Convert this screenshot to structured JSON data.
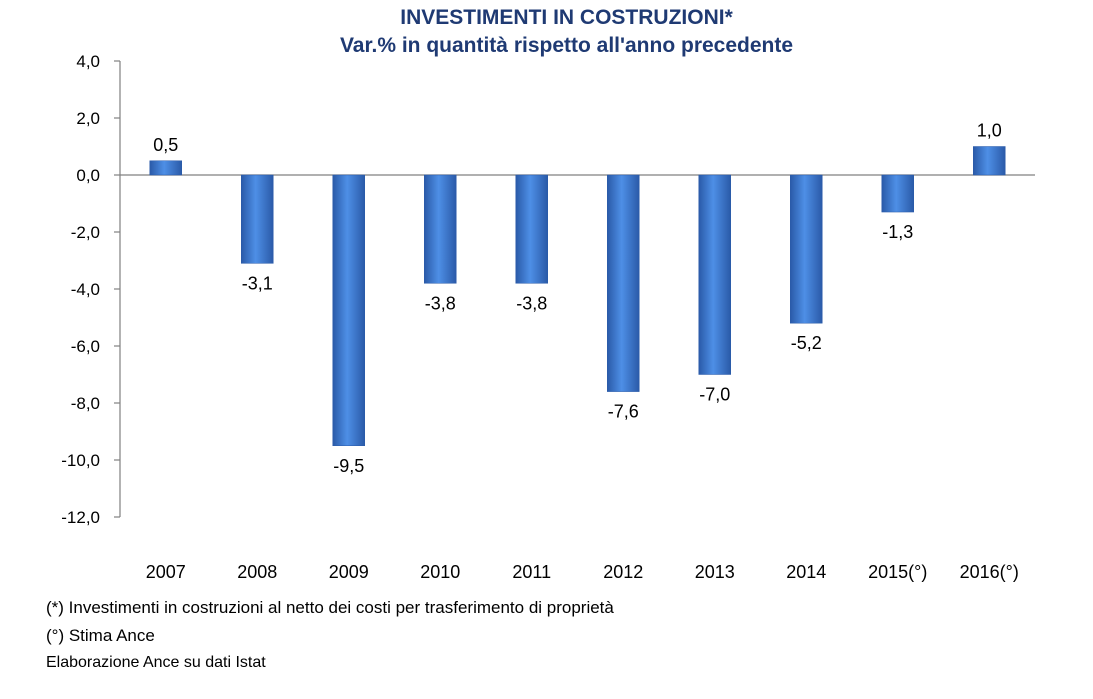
{
  "chart_data": {
    "type": "bar",
    "title": "INVESTIMENTI IN COSTRUZIONI*",
    "subtitle": "Var.% in quantità rispetto all'anno precedente",
    "categories": [
      "2007",
      "2008",
      "2009",
      "2010",
      "2011",
      "2012",
      "2013",
      "2014",
      "2015(°)",
      "2016(°)"
    ],
    "values": [
      0.5,
      -3.1,
      -9.5,
      -3.8,
      -3.8,
      -7.6,
      -7.0,
      -5.2,
      -1.3,
      1.0
    ],
    "data_labels": [
      "0,5",
      "-3,1",
      "-9,5",
      "-3,8",
      "-3,8",
      "-7,6",
      "-7,0",
      "-5,2",
      "-1,3",
      "1,0"
    ],
    "ylim": [
      -12,
      4
    ],
    "yticks": [
      4,
      2,
      0,
      -2,
      -4,
      -6,
      -8,
      -10,
      -12
    ],
    "ytick_labels": [
      "4,0",
      "2,0",
      "0,0",
      "-2,0",
      "-4,0",
      "-6,0",
      "-8,0",
      "-10,0",
      "-12,0"
    ],
    "bar_color": "#3f7fd6",
    "grid": false,
    "legend": "none"
  },
  "notes": {
    "note1": "(*) Investimenti in costruzioni al netto dei costi per trasferimento di proprietà",
    "note2": "(°) Stima Ance",
    "source": "Elaborazione Ance su dati Istat"
  }
}
